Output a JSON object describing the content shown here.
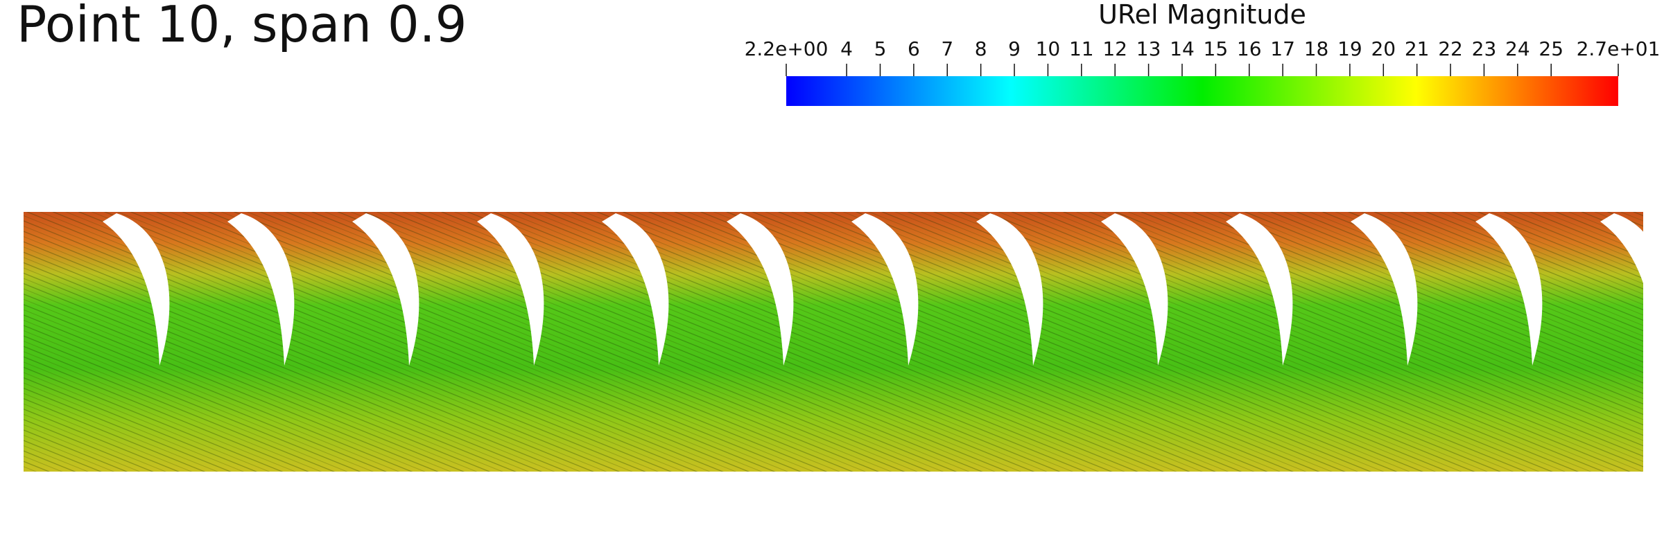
{
  "title": "Point 10, span 0.9",
  "colorbar": {
    "title": "URel Magnitude",
    "range": [
      2.2,
      27
    ],
    "ticks": [
      {
        "value": 2.2,
        "label": "2.2e+00"
      },
      4,
      5,
      6,
      7,
      8,
      9,
      10,
      11,
      12,
      13,
      14,
      15,
      16,
      17,
      18,
      19,
      20,
      21,
      22,
      23,
      24,
      25,
      {
        "value": 27,
        "label": "2.7e+01"
      }
    ]
  }
}
